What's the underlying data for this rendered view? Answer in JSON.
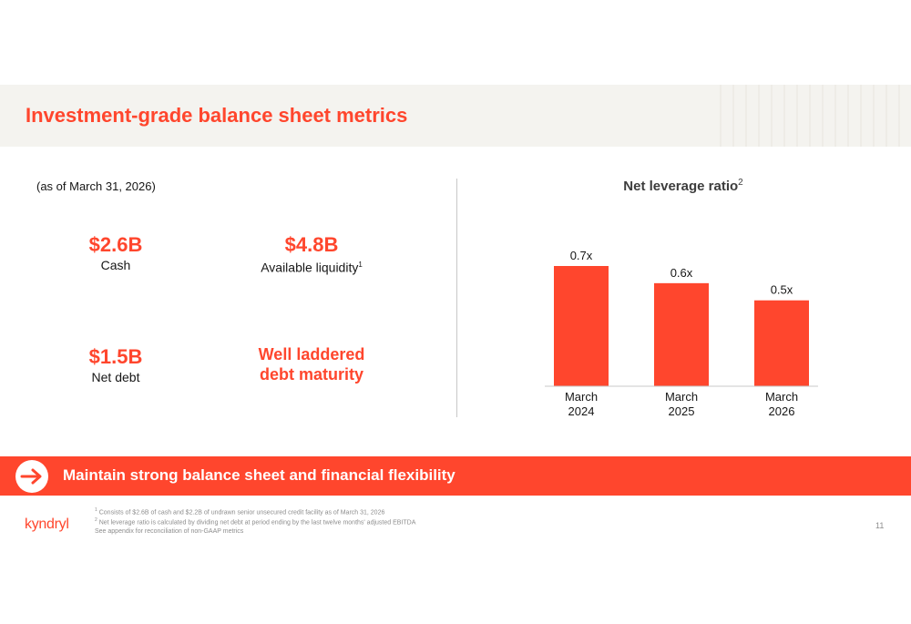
{
  "title": "Investment-grade balance sheet metrics",
  "as_of": "(as of March 31, 2026)",
  "metrics": [
    {
      "value": "$2.6B",
      "label": "Cash"
    },
    {
      "value": "$4.8B",
      "label": "Available liquidity",
      "sup": "1"
    },
    {
      "value": "$1.5B",
      "label": "Net debt"
    }
  ],
  "ladder_text_line1": "Well laddered",
  "ladder_text_line2": "debt maturity",
  "chart_title": "Net leverage ratio",
  "chart_title_sup": "2",
  "chart_data": {
    "type": "bar",
    "title": "Net leverage ratio",
    "categories": [
      [
        "March",
        "2024"
      ],
      [
        "March",
        "2025"
      ],
      [
        "March",
        "2026"
      ]
    ],
    "values": [
      0.7,
      0.6,
      0.5
    ],
    "data_labels": [
      "0.7x",
      "0.6x",
      "0.5x"
    ],
    "ylim": [
      0,
      0.7
    ],
    "grid": false,
    "bar_color": "#ff462d"
  },
  "banner": {
    "text": "Maintain strong balance sheet and financial flexibility",
    "icon": "arrow-right-icon"
  },
  "footnotes": {
    "note1_mark": "1",
    "note1": "Consists of $2.6B of cash and $2.2B of undrawn senior unsecured credit facility as of March 31, 2026",
    "note2_mark": "2",
    "note2": "Net leverage ratio is calculated by dividing net debt at period ending by the last twelve months' adjusted EBITDA",
    "note3": "See appendix for reconciliation of non-GAAP metrics"
  },
  "logo": "kyndryl",
  "page_number": "11",
  "colors": {
    "accent": "#ff462d",
    "band": "#f4f3ef",
    "text": "#161616"
  }
}
